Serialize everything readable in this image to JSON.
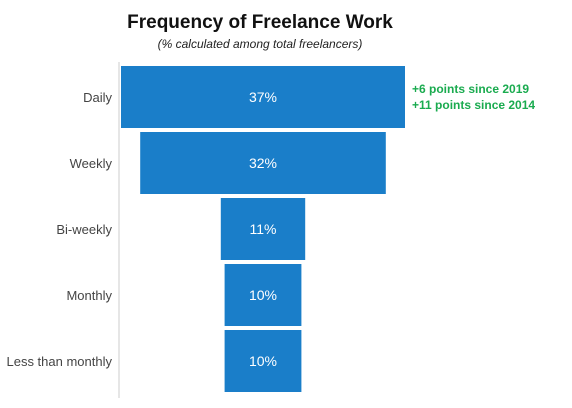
{
  "header": {
    "title": "Frequency of Freelance Work",
    "subtitle": "(% calculated among total freelancers)"
  },
  "annotations": [
    "+6 points since 2019",
    "+11 points since 2014"
  ],
  "colors": {
    "bar": "#1a7ec9",
    "annotation": "#1aab4f",
    "axis": "#cccccc"
  },
  "chart_data": {
    "type": "bar",
    "orientation": "horizontal-centered-funnel",
    "categories": [
      "Daily",
      "Weekly",
      "Bi-weekly",
      "Monthly",
      "Less than monthly"
    ],
    "values": [
      37,
      32,
      11,
      10,
      10
    ],
    "value_labels": [
      "37%",
      "32%",
      "11%",
      "10%",
      "10%"
    ],
    "title": "Frequency of Freelance Work",
    "subtitle": "(% calculated among total freelancers)",
    "unit": "%"
  }
}
